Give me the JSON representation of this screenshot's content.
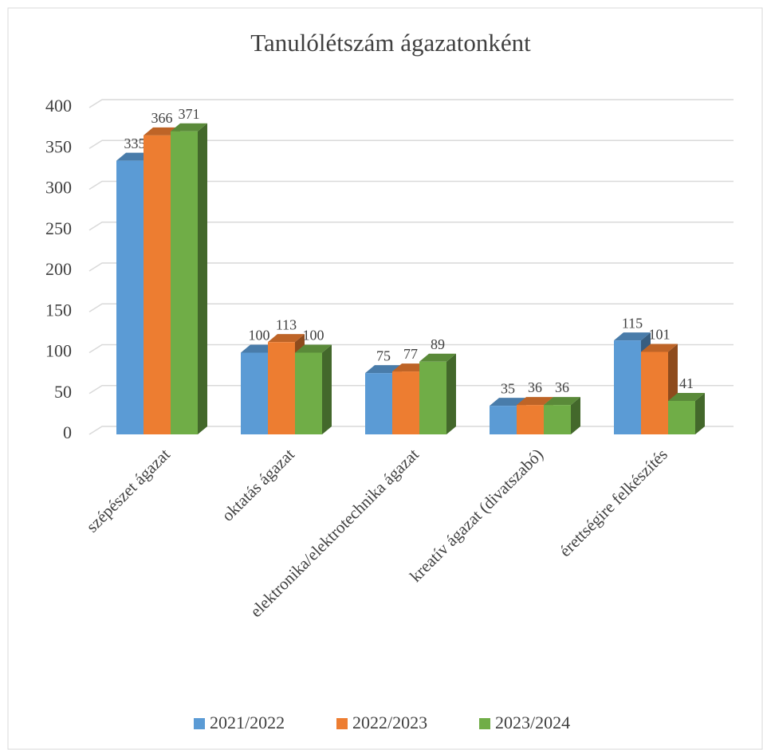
{
  "chart_data": {
    "type": "bar",
    "title": "Tanulólétszám ágazatonként",
    "categories": [
      "szépészet ágazat",
      "oktatás ágazat",
      "elektronika/elektrotechnika ágazat",
      "kreatív ágazat (divatszabó)",
      "érettségire felkészítés"
    ],
    "series": [
      {
        "name": "2021/2022",
        "color": "#5b9bd5",
        "values": [
          335,
          100,
          75,
          35,
          115
        ]
      },
      {
        "name": "2022/2023",
        "color": "#ed7d31",
        "values": [
          366,
          113,
          77,
          36,
          101
        ]
      },
      {
        "name": "2023/2024",
        "color": "#70ad47",
        "values": [
          371,
          100,
          89,
          36,
          41
        ]
      }
    ],
    "ylim": [
      0,
      400
    ],
    "yticks": [
      0,
      50,
      100,
      150,
      200,
      250,
      300,
      350,
      400
    ],
    "grid": true,
    "legend": "bottom"
  }
}
